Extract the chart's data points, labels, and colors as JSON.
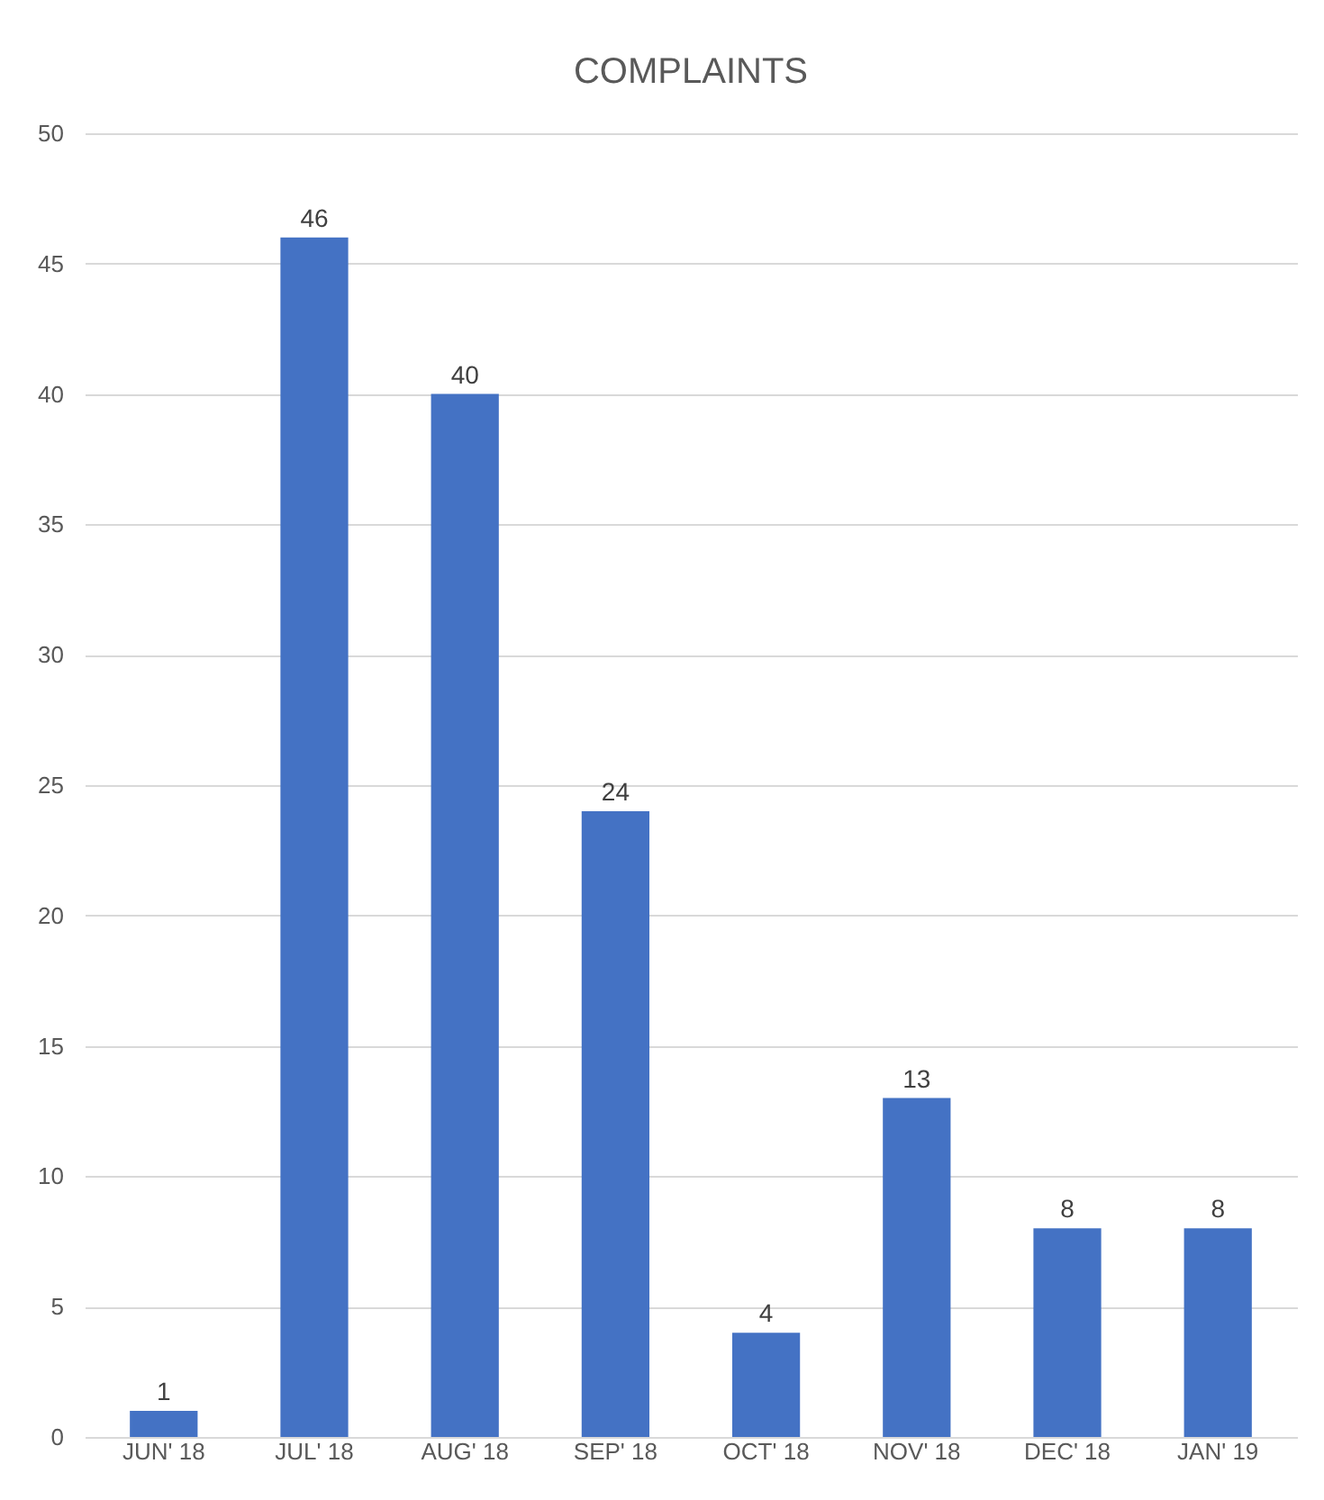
{
  "chart_data": {
    "type": "bar",
    "title": "COMPLAINTS",
    "categories": [
      "JUN' 18",
      "JUL' 18",
      "AUG' 18",
      "SEP' 18",
      "OCT' 18",
      "NOV' 18",
      "DEC' 18",
      "JAN' 19"
    ],
    "values": [
      1,
      46,
      40,
      24,
      4,
      13,
      8,
      8
    ],
    "color": "#4472c4",
    "ylim": [
      0,
      50
    ],
    "yticks": [
      0,
      5,
      10,
      15,
      20,
      25,
      30,
      35,
      40,
      45,
      50
    ],
    "grid": "y",
    "data_labels": true
  }
}
